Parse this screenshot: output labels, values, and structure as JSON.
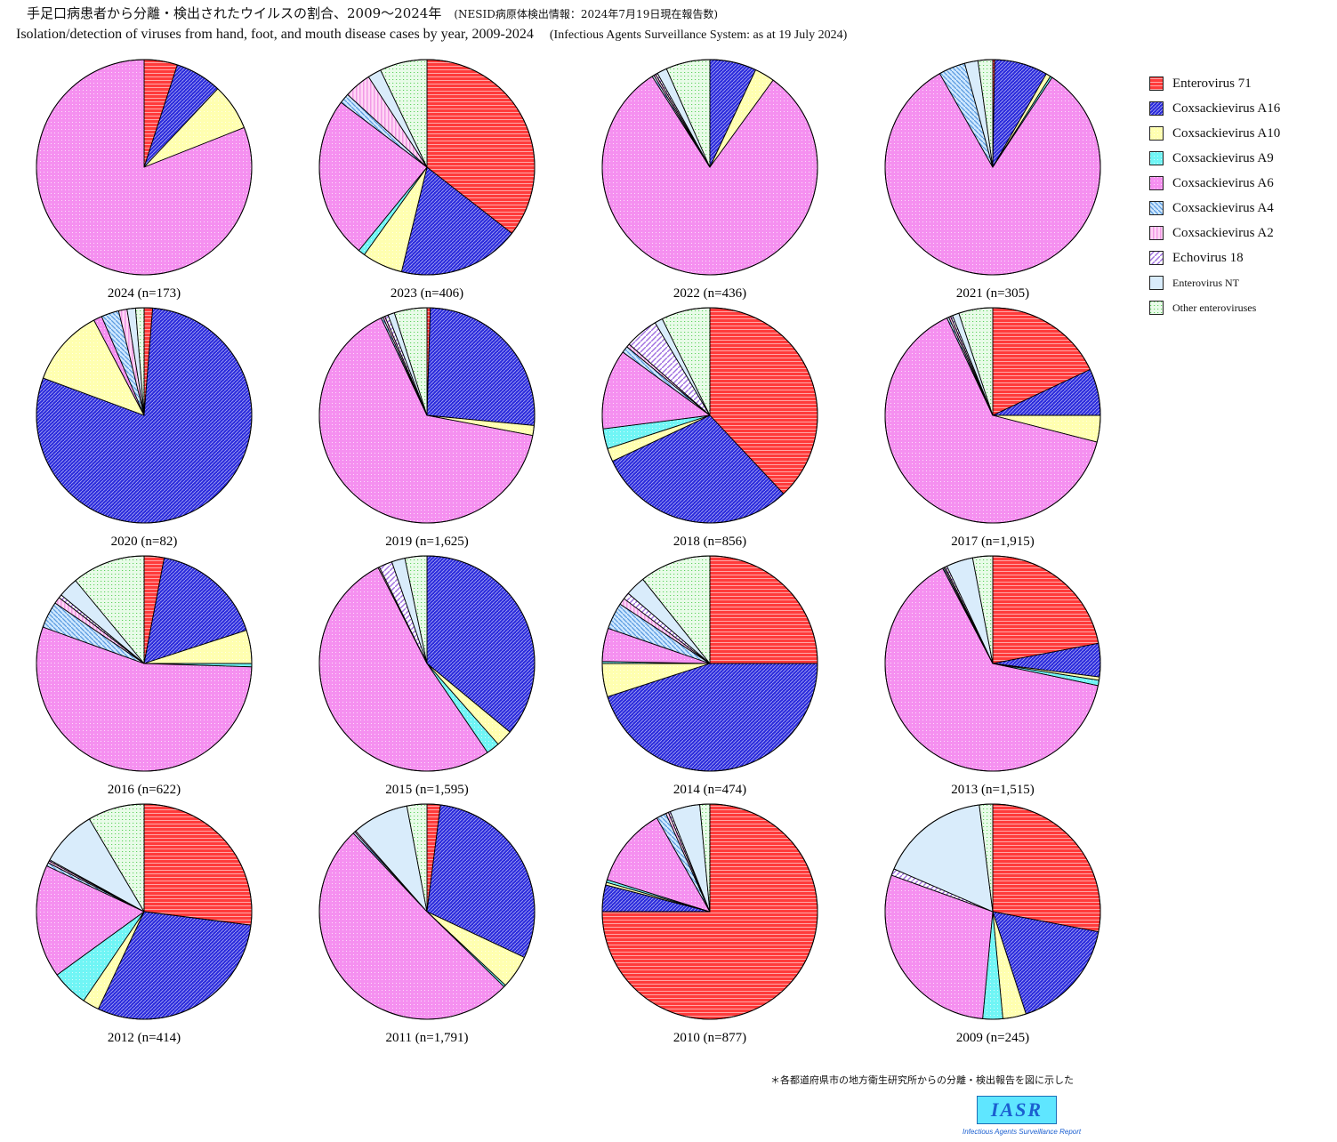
{
  "header": {
    "title_jp": "手足口病患者から分離・検出されたウイルスの割合、2009〜2024年",
    "note_jp": "(NESID病原体検出情報：2024年7月19日現在報告数)",
    "title_en": "Isolation/detection of viruses from hand, foot, and mouth disease cases by year, 2009-2024",
    "note_en": "(Infectious Agents Surveillance System: as at 19 July 2024)"
  },
  "footer": {
    "footnote": "＊各都道府県市の地方衛生研究所からの分離・検出報告を図に示した",
    "logo": "IASR",
    "logo_sub": "Infectious Agents Surveillance Report"
  },
  "chart_data": {
    "type": "pie",
    "title": "Isolation/detection of viruses from hand, foot, and mouth disease cases by year, 2009-2024",
    "unit": "percent of isolates (estimated)",
    "legend_position": "right",
    "categories": [
      {
        "name": "Enterovirus 71",
        "color": "#ff3b3b",
        "pattern": "hlines"
      },
      {
        "name": "Coxsackievirus A16",
        "color": "#2b2bdc",
        "pattern": "diag"
      },
      {
        "name": "Coxsackievirus A10",
        "color": "#ffffb0",
        "pattern": "dots"
      },
      {
        "name": "Coxsackievirus A9",
        "color": "#70f5f5",
        "pattern": "dots"
      },
      {
        "name": "Coxsackievirus A6",
        "color": "#f590f0",
        "pattern": "dots"
      },
      {
        "name": "Coxsackievirus A4",
        "color": "#cfe8ff",
        "pattern": "diag-rev"
      },
      {
        "name": "Coxsackievirus A2",
        "color": "#ffd6f5",
        "pattern": "vlines"
      },
      {
        "name": "Echovirus 18",
        "color": "#ffffff",
        "pattern": "diag-purple"
      },
      {
        "name": "Enterovirus NT",
        "color": "#d9ecfb",
        "pattern": "none"
      },
      {
        "name": "Other enteroviruses",
        "color": "#e8fbe8",
        "pattern": "green-dots"
      }
    ],
    "pies": [
      {
        "year": "2024",
        "label": "2024 (n=173)",
        "n": 173,
        "values": [
          5,
          7,
          7,
          0,
          81,
          0,
          0,
          0,
          0,
          0
        ]
      },
      {
        "year": "2023",
        "label": "2023 (n=406)",
        "n": 406,
        "values": [
          35,
          18,
          6,
          1,
          24,
          1.5,
          4,
          0,
          2,
          7
        ]
      },
      {
        "year": "2022",
        "label": "2022 (n=436)",
        "n": 436,
        "values": [
          0,
          7,
          3,
          0,
          81,
          0.3,
          0.3,
          0.3,
          1.5,
          6.6
        ]
      },
      {
        "year": "2021",
        "label": "2021 (n=305)",
        "n": 305,
        "values": [
          0.3,
          8,
          0.7,
          0.3,
          82.5,
          4,
          0,
          0,
          2,
          2.2
        ]
      },
      {
        "year": "2020",
        "label": "2020 (n=82)",
        "n": 82,
        "values": [
          1.2,
          75,
          11,
          0,
          1.2,
          2.5,
          1.2,
          0,
          1.2,
          1.2
        ]
      },
      {
        "year": "2019",
        "label": "2019 (n=1,625)",
        "n": 1625,
        "values": [
          0.5,
          26,
          1.5,
          0,
          65,
          0.3,
          0.3,
          0.5,
          1,
          4.9
        ]
      },
      {
        "year": "2018",
        "label": "2018 (n=856)",
        "n": 856,
        "values": [
          38,
          30,
          2,
          3,
          12,
          1,
          0.5,
          5,
          1.2,
          7.3
        ]
      },
      {
        "year": "2017",
        "label": "2017 (n=1,915)",
        "n": 1915,
        "values": [
          18,
          7,
          4,
          0,
          64,
          0.3,
          0.3,
          0.3,
          1,
          5.1
        ]
      },
      {
        "year": "2016",
        "label": "2016 (n=622)",
        "n": 622,
        "values": [
          3,
          17,
          5,
          0.5,
          55,
          4,
          1,
          0.5,
          3,
          11
        ]
      },
      {
        "year": "2015",
        "label": "2015 (n=1,595)",
        "n": 1595,
        "values": [
          0,
          36,
          2.5,
          2,
          52,
          0,
          0.2,
          2,
          2,
          3.3
        ]
      },
      {
        "year": "2014",
        "label": "2014 (n=474)",
        "n": 474,
        "values": [
          25,
          45,
          5,
          0.3,
          5,
          4,
          1,
          1,
          3,
          10.7
        ]
      },
      {
        "year": "2013",
        "label": "2013 (n=1,515)",
        "n": 1515,
        "values": [
          22,
          5,
          0.5,
          0.8,
          64,
          0.2,
          0.2,
          0.3,
          4,
          3
        ]
      },
      {
        "year": "2012",
        "label": "2012 (n=414)",
        "n": 414,
        "values": [
          27,
          30,
          2.5,
          5.5,
          17,
          0.5,
          0.3,
          0.2,
          8.5,
          8.5
        ]
      },
      {
        "year": "2011",
        "label": "2011 (n=1,791)",
        "n": 1791,
        "values": [
          2,
          30,
          5,
          0.3,
          50.7,
          0.3,
          0.2,
          0,
          8.5,
          3
        ]
      },
      {
        "year": "2010",
        "label": "2010 (n=877)",
        "n": 877,
        "values": [
          75,
          4,
          0.4,
          0.4,
          12,
          1.5,
          0.4,
          0.3,
          4.5,
          1.5
        ]
      },
      {
        "year": "2009",
        "label": "2009 (n=245)",
        "n": 245,
        "values": [
          28,
          17,
          3.5,
          3,
          29,
          0,
          0,
          1,
          16.5,
          2
        ]
      }
    ]
  }
}
